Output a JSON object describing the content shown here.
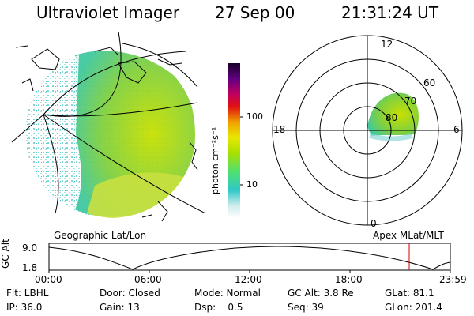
{
  "header": {
    "instrument": "Ultraviolet Imager",
    "date": "27 Sep 00",
    "time": "21:31:24 UT"
  },
  "left_panel": {
    "caption": "Geographic Lat/Lon"
  },
  "right_panel": {
    "caption": "Apex MLat/MLT",
    "mlt_labels": {
      "top": "12",
      "left": "18",
      "right": "6",
      "bottom": "0"
    },
    "lat_labels": [
      "60",
      "70",
      "80"
    ]
  },
  "colorbar": {
    "title": "photon cm⁻²s⁻¹",
    "ticks": [
      "100",
      "10"
    ]
  },
  "timeline": {
    "axis_label": "GC Alt",
    "y_ticks": [
      "9.0",
      "1.8"
    ],
    "x_ticks": [
      "00:00",
      "06:00",
      "12:00",
      "18:00",
      "23:59"
    ],
    "marker_time": "21:31"
  },
  "info": {
    "row1": {
      "flt": "Flt: LBHL",
      "door": "Door: Closed",
      "mode": "Mode: Normal",
      "gcalt": "GC Alt: 3.8 Re",
      "glat": "GLat: 81.1"
    },
    "row2": {
      "ip": "IP: 36.0",
      "gain": "Gain: 13",
      "dsp": "Dsp:    0.5",
      "seq": "Seq: 39",
      "glon": "GLon: 201.4"
    }
  },
  "colors": {
    "marker": "#d00000",
    "aurora_green": "#9ad400",
    "background_cyan": "#8fd8d8"
  }
}
